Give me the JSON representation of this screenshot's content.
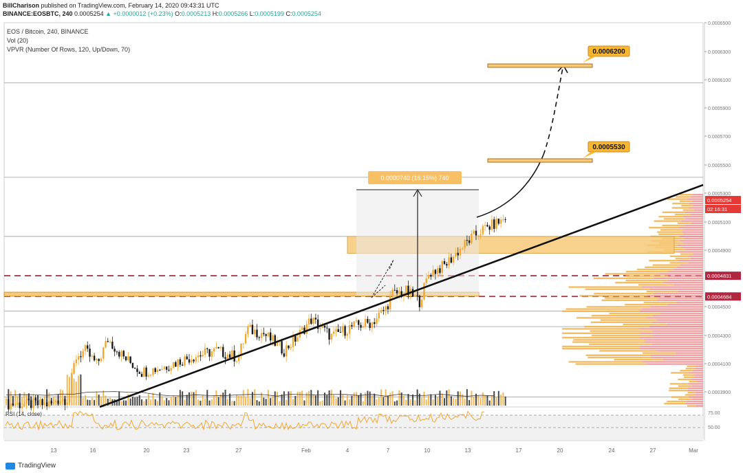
{
  "header": {
    "author": "BillCharison",
    "published": "published on TradingView.com, February 14, 2020 09:43:31 UTC",
    "symbol": "BINANCE:EOSBTC, 240",
    "last": "0.0005254",
    "change": "+0.0000012 (+0.23%)",
    "open_label": "O:",
    "open": "0.0005213",
    "high_label": "H:",
    "high": "0.0005266",
    "low_label": "L:",
    "low": "0.0005199",
    "close_label": "C:",
    "close": "0.0005254"
  },
  "legend": {
    "title": "EOS / Bitcoin, 240, BINANCE",
    "vol": "Vol (20)",
    "vpvr": "VPVR (Number Of Rows, 120, Up/Down, 70)"
  },
  "footer": {
    "brand": "TradingView"
  },
  "colors": {
    "up": "#f0a830",
    "down": "#1a1a1a",
    "zone": "#f7c978",
    "dashed": "#b0283f",
    "trend": "#111111",
    "rsi": "#f0a830",
    "price_badge": "#e53935",
    "target_badge": "#f7b731"
  },
  "chart_data": {
    "type": "candlestick",
    "yaxis": {
      "ticks": [
        "0.0006500",
        "0.0006300",
        "0.0006100",
        "0.0005900",
        "0.0005700",
        "0.0005500",
        "0.0005300",
        "0.0005100",
        "0.0004900",
        "0.0004500",
        "0.0004300",
        "0.0004100",
        "0.0003900"
      ],
      "range": [
        0.000385,
        0.000655
      ]
    },
    "xaxis": {
      "ticks": [
        "13",
        "16",
        "20",
        "23",
        "27",
        "Feb",
        "4",
        "7",
        "10",
        "13",
        "17",
        "20",
        "24",
        "27",
        "Mar"
      ]
    },
    "price_labels": {
      "current": "0.0005254",
      "countdown": "02:16:31",
      "level_1": "0.0004831",
      "level_2": "0.0004684",
      "target_1": "0.0005530",
      "target_2": "0.0006200"
    },
    "measure_label": "0.0000740 (16.15%) 740",
    "rsi": {
      "title": "RSI (14, close)",
      "ticks": [
        "75.00",
        "50.00"
      ],
      "upper": 75,
      "lower": 50
    },
    "key_levels": [
      0.00062,
      0.000553,
      0.000511,
      0.0004831,
      0.0004684,
      0.000458,
      0.000447,
      0.000397
    ],
    "candles_summary": {
      "start": "Jan 13",
      "end": "Feb 14",
      "low": 0.000385,
      "high": 0.0005266
    }
  }
}
